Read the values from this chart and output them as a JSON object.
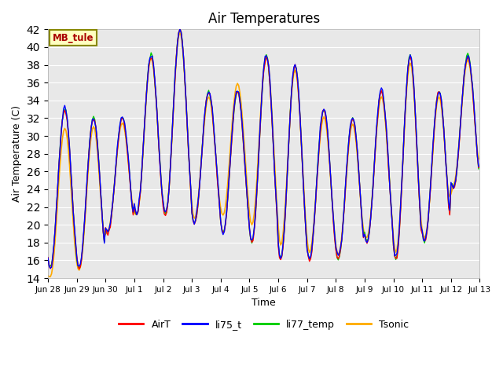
{
  "title": "Air Temperatures",
  "ylabel": "Air Temperature (C)",
  "xlabel": "Time",
  "ylim": [
    14,
    42
  ],
  "yticks": [
    14,
    16,
    18,
    20,
    22,
    24,
    26,
    28,
    30,
    32,
    34,
    36,
    38,
    40,
    42
  ],
  "annotation": "MB_tule",
  "colors": {
    "AirT": "#ff0000",
    "li75_t": "#0000ff",
    "li77_temp": "#00cc00",
    "Tsonic": "#ffaa00"
  },
  "bg_color": "#e8e8e8",
  "figsize": [
    6.4,
    4.8
  ],
  "dpi": 100,
  "tick_labels": [
    "Jun 28",
    "Jun 29",
    "Jun 30",
    "Jul 1",
    "Jul 2",
    "Jul 3",
    "Jul 4",
    "Jul 5",
    "Jul 6",
    "Jul 7",
    "Jul 8",
    "Jul 9",
    "Jul 10",
    "Jul 11",
    "Jul 12",
    "Jul 13"
  ]
}
